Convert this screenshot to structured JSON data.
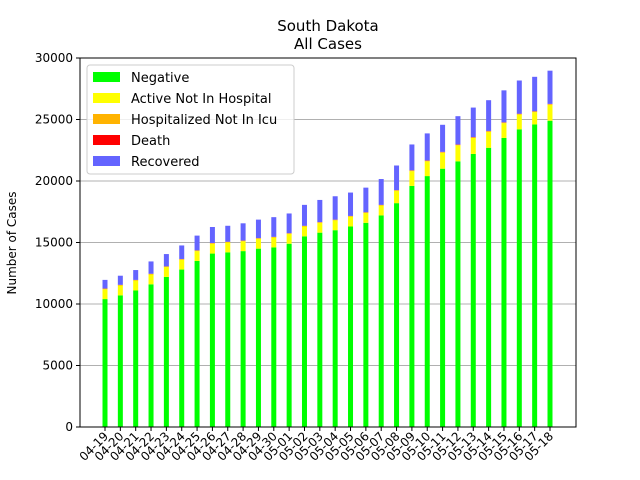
{
  "chart_data": {
    "type": "bar",
    "stacked": true,
    "title": "South Dakota",
    "subtitle": "All Cases",
    "xlabel": "",
    "ylabel": "Number of Cases",
    "ylim": [
      0,
      30000
    ],
    "yticks": [
      0,
      5000,
      10000,
      15000,
      20000,
      25000,
      30000
    ],
    "grid": "horizontal",
    "legend_position": "top-left",
    "categories": [
      "04-19",
      "04-20",
      "04-21",
      "04-22",
      "04-23",
      "04-24",
      "04-25",
      "04-26",
      "04-27",
      "04-28",
      "04-29",
      "04-30",
      "05-01",
      "05-02",
      "05-03",
      "05-04",
      "05-05",
      "05-06",
      "05-07",
      "05-08",
      "05-09",
      "05-10",
      "05-11",
      "05-12",
      "05-13",
      "05-14",
      "05-15",
      "05-16",
      "05-17",
      "05-18"
    ],
    "series": [
      {
        "name": "Negative",
        "color": "#00ff00",
        "values": [
          10400,
          10700,
          11100,
          11600,
          12200,
          12800,
          13500,
          14100,
          14200,
          14300,
          14500,
          14600,
          14900,
          15500,
          15800,
          16000,
          16300,
          16600,
          17200,
          18200,
          19600,
          20400,
          21000,
          21600,
          22200,
          22700,
          23500,
          24200,
          24600,
          24900
        ]
      },
      {
        "name": "Active Not In Hospital",
        "color": "#ffff00",
        "values": [
          800,
          800,
          800,
          800,
          800,
          800,
          800,
          800,
          800,
          800,
          800,
          800,
          800,
          800,
          800,
          800,
          800,
          800,
          800,
          1000,
          1200,
          1200,
          1300,
          1300,
          1300,
          1300,
          1200,
          1200,
          1000,
          1300
        ]
      },
      {
        "name": "Hospitalized Not In Icu",
        "color": "#ffb300",
        "values": [
          50,
          50,
          50,
          50,
          50,
          50,
          50,
          50,
          50,
          50,
          50,
          50,
          50,
          50,
          50,
          50,
          50,
          50,
          50,
          50,
          50,
          50,
          50,
          50,
          50,
          50,
          50,
          50,
          50,
          50
        ]
      },
      {
        "name": "Death",
        "color": "#ff0000",
        "values": [
          10,
          10,
          10,
          10,
          10,
          10,
          10,
          10,
          10,
          10,
          10,
          10,
          10,
          10,
          10,
          10,
          10,
          10,
          10,
          10,
          20,
          20,
          20,
          20,
          20,
          20,
          20,
          20,
          20,
          20
        ]
      },
      {
        "name": "Recovered",
        "color": "#6464ff",
        "values": [
          700,
          740,
          800,
          1000,
          1000,
          1100,
          1200,
          1300,
          1300,
          1400,
          1500,
          1600,
          1600,
          1700,
          1800,
          1900,
          1900,
          2000,
          2100,
          2000,
          2100,
          2200,
          2200,
          2300,
          2400,
          2500,
          2600,
          2700,
          2800,
          2700
        ]
      }
    ]
  }
}
